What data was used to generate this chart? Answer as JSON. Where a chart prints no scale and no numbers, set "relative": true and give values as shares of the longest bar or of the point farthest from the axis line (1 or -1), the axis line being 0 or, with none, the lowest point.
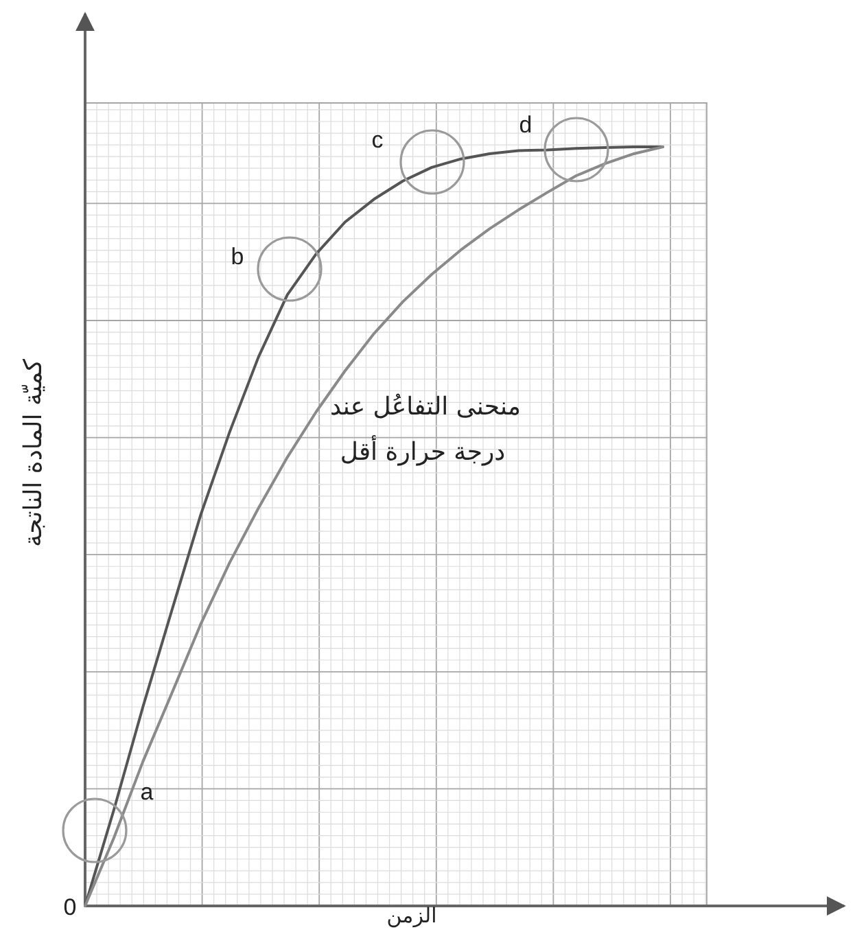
{
  "chart_data": {
    "type": "line",
    "xlabel": "الزمن",
    "ylabel": "كميّة المادة الناتجة",
    "relative": true,
    "grid": true,
    "line_style": "solid",
    "categories": [
      null,
      null,
      null,
      null,
      null,
      null,
      null,
      null,
      null,
      null,
      null,
      null,
      null,
      null,
      null,
      null,
      null,
      null,
      null,
      null,
      null
    ],
    "series": [
      {
        "color": "#555555",
        "values": [
          0,
          0.127,
          0.262,
          0.389,
          0.515,
          0.624,
          0.723,
          0.805,
          0.859,
          0.901,
          0.931,
          0.955,
          0.973,
          0.984,
          0.991,
          0.995,
          0.996,
          0.998,
          0.999,
          1,
          1
        ]
      },
      {
        "color": "#8a8a8a",
        "values": [
          0,
          0.09,
          0.19,
          0.28,
          0.371,
          0.452,
          0.524,
          0.591,
          0.651,
          0.705,
          0.754,
          0.796,
          0.832,
          0.864,
          0.892,
          0.917,
          0.94,
          0.962,
          0.978,
          0.991,
          1
        ]
      }
    ],
    "annotations": [
      "0",
      "a",
      "b",
      "c",
      "d",
      "منحنى التفاعُل عند",
      "درجة حرارة أقل"
    ]
  }
}
